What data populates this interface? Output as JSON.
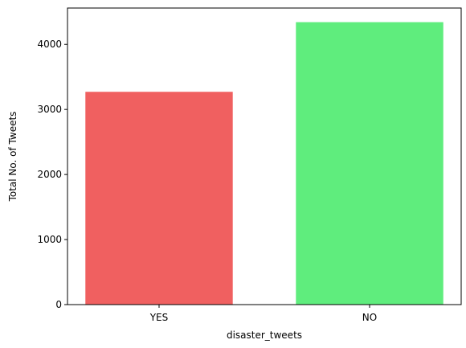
{
  "chart_data": {
    "type": "bar",
    "categories": [
      "YES",
      "NO"
    ],
    "values": [
      3271,
      4342
    ],
    "colors": [
      "#f06060",
      "#5fed7d"
    ],
    "xlabel": "disaster_tweets",
    "ylabel": "Total No. of Tweets",
    "ylim": [
      0,
      4559
    ],
    "yticks": [
      0,
      1000,
      2000,
      3000,
      4000
    ],
    "grid": false,
    "legend": "none"
  }
}
